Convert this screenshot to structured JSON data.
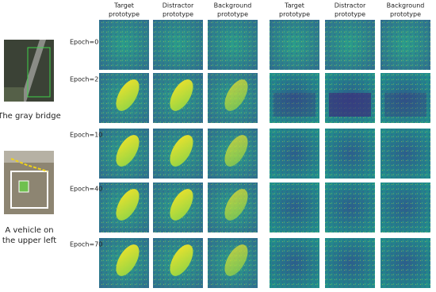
{
  "figure": {
    "examples": [
      {
        "caption": [
          "The gray bridge"
        ]
      },
      {
        "caption": [
          "A vehicle on",
          "the upper left"
        ]
      }
    ],
    "columns": [
      [
        "Target",
        "prototype"
      ],
      [
        "Distractor",
        "prototype"
      ],
      [
        "Background",
        "prototype"
      ],
      [
        "Target",
        "prototype"
      ],
      [
        "Distractor",
        "prototype"
      ],
      [
        "Background",
        "prototype"
      ]
    ],
    "rows": [
      "Epoch=0",
      "Epoch=2",
      "Epoch=10",
      "Epoch=40",
      "Epoch=70"
    ]
  }
}
